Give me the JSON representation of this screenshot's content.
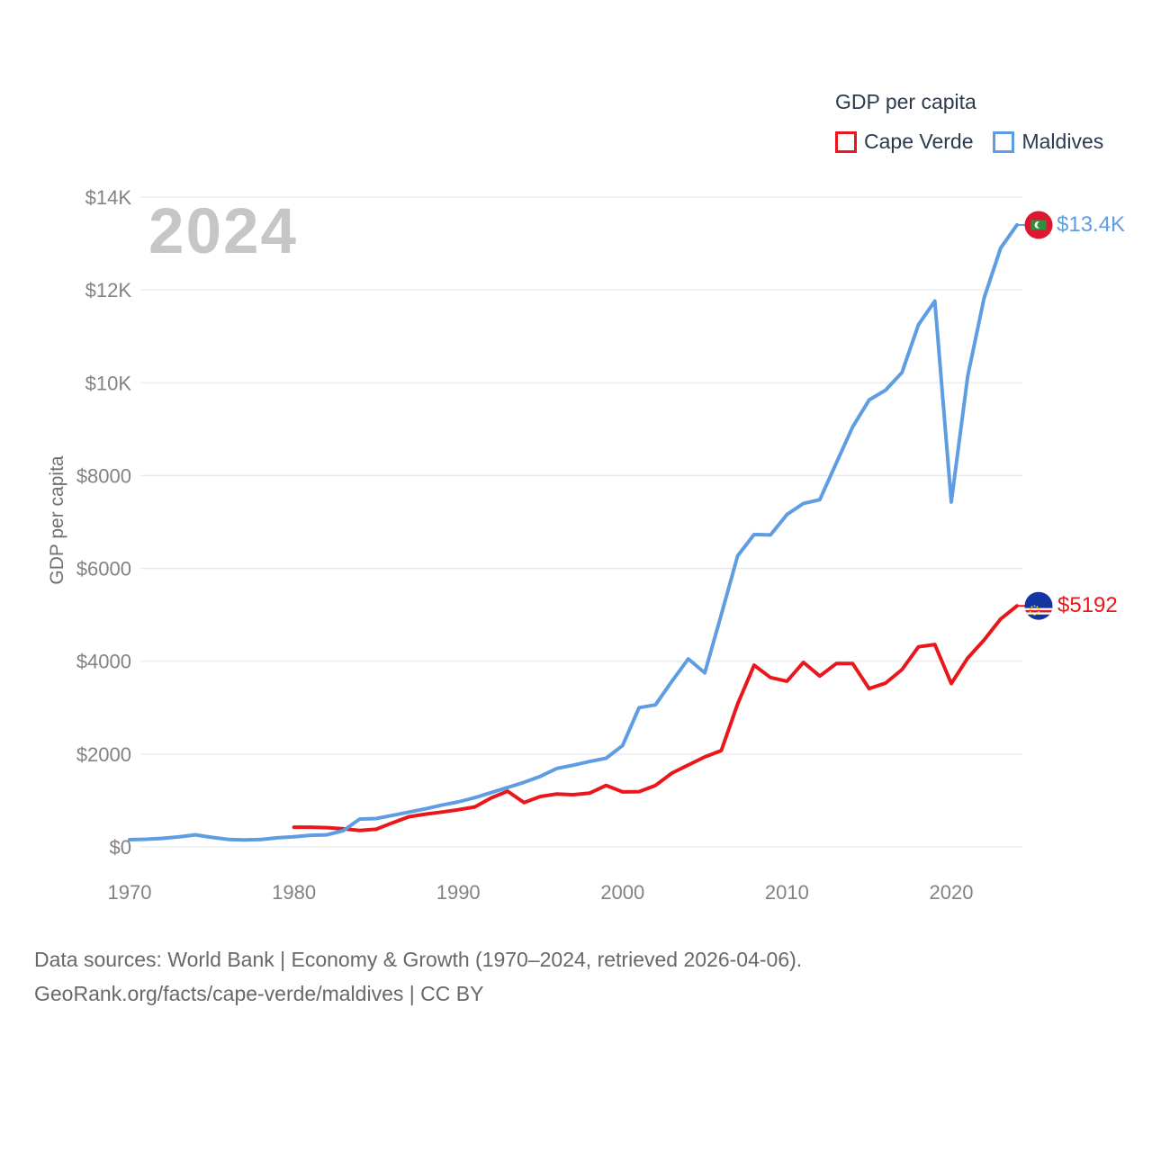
{
  "watermark": "2024",
  "legend": {
    "title": "GDP per capita",
    "items": [
      {
        "label": "Cape Verde",
        "color": "#e9171b"
      },
      {
        "label": "Maldives",
        "color": "#5e9de2"
      }
    ]
  },
  "y_axis": {
    "label": "GDP per capita",
    "ticks": [
      {
        "label": "$0",
        "value": 0
      },
      {
        "label": "$2000",
        "value": 2000
      },
      {
        "label": "$4000",
        "value": 4000
      },
      {
        "label": "$6000",
        "value": 6000
      },
      {
        "label": "$8000",
        "value": 8000
      },
      {
        "label": "$10K",
        "value": 10000
      },
      {
        "label": "$12K",
        "value": 12000
      },
      {
        "label": "$14K",
        "value": 14000
      }
    ]
  },
  "x_axis": {
    "ticks": [
      {
        "label": "1970",
        "year": 1970
      },
      {
        "label": "1980",
        "year": 1980
      },
      {
        "label": "1990",
        "year": 1990
      },
      {
        "label": "2000",
        "year": 2000
      },
      {
        "label": "2010",
        "year": 2010
      },
      {
        "label": "2020",
        "year": 2020
      }
    ]
  },
  "end_labels": [
    {
      "series": "Maldives",
      "text": "$13.4K",
      "color": "#5e9de2"
    },
    {
      "series": "Cape Verde",
      "text": "$5192",
      "color": "#e9171b"
    }
  ],
  "footer": {
    "line1": "Data sources: World Bank | Economy & Growth (1970–2024, retrieved 2026-04-06).",
    "line2": "GeoRank.org/facts/cape-verde/maldives | CC BY"
  },
  "chart_data": {
    "type": "line",
    "title": "GDP per capita",
    "ylabel": "GDP per capita",
    "ylim": [
      0,
      14000
    ],
    "xlim": [
      1970,
      2024.6
    ],
    "grid": true,
    "legend_position": "top-right",
    "series": [
      {
        "name": "Cape Verde",
        "color": "#e9171b",
        "flag": "cape-verde",
        "start_year": 1980,
        "end_value_label": "$5192",
        "values": [
          425,
          425,
          415,
          390,
          355,
          380,
          520,
          650,
          705,
          750,
          800,
          860,
          1055,
          1200,
          955,
          1085,
          1140,
          1125,
          1160,
          1325,
          1185,
          1190,
          1325,
          1590,
          1765,
          1940,
          2075,
          3080,
          3915,
          3650,
          3570,
          3975,
          3680,
          3950,
          3950,
          3410,
          3530,
          3820,
          4310,
          4360,
          3520,
          4070,
          4460,
          4910,
          5192
        ]
      },
      {
        "name": "Maldives",
        "color": "#5e9de2",
        "flag": "maldives",
        "start_year": 1970,
        "end_value_label": "$13.4K",
        "values": [
          155,
          165,
          185,
          215,
          260,
          205,
          160,
          150,
          160,
          195,
          220,
          250,
          260,
          350,
          600,
          610,
          680,
          750,
          820,
          900,
          970,
          1060,
          1170,
          1280,
          1390,
          1520,
          1690,
          1760,
          1840,
          1910,
          2185,
          3000,
          3060,
          3570,
          4050,
          3750,
          5000,
          6270,
          6730,
          6720,
          7160,
          7400,
          7480,
          8270,
          9050,
          9630,
          9840,
          10220,
          11250,
          11760,
          7430,
          10150,
          11830,
          12900,
          13400
        ]
      }
    ],
    "flag_colors": {
      "maldives": {
        "field": "#de1731",
        "panel": "#2e8f3e",
        "crescent": "#ffffff"
      },
      "cape_verde": {
        "field": "#1235a0",
        "stripe_white": "#ffffff",
        "stripe_red": "#d6202c",
        "stars": "#f7d116"
      }
    },
    "grid_color": "#e8e8e8",
    "tick_color": "#828282"
  }
}
